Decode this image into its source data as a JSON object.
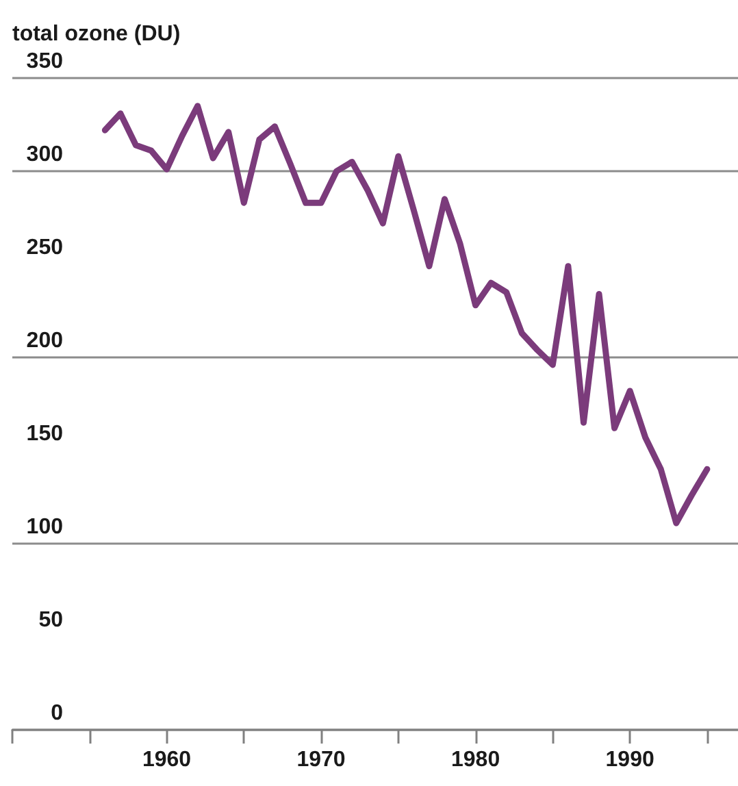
{
  "chart_data": {
    "type": "line",
    "ylabel": "total ozone (DU)",
    "x": [
      1956,
      1957,
      1958,
      1959,
      1960,
      1961,
      1962,
      1963,
      1964,
      1965,
      1966,
      1967,
      1968,
      1969,
      1970,
      1971,
      1972,
      1973,
      1974,
      1975,
      1976,
      1977,
      1978,
      1979,
      1980,
      1981,
      1982,
      1983,
      1984,
      1985,
      1986,
      1987,
      1988,
      1989,
      1990,
      1991,
      1992,
      1993,
      1994,
      1995
    ],
    "series": [
      {
        "color": "#7b3b7b",
        "values": [
          322,
          331,
          314,
          311,
          301,
          319,
          335,
          307,
          321,
          283,
          317,
          324,
          304,
          283,
          283,
          300,
          305,
          290,
          272,
          308,
          279,
          249,
          285,
          261,
          228,
          240,
          235,
          213,
          204,
          196,
          249,
          165,
          234,
          162,
          182,
          157,
          140,
          111,
          126,
          140
        ]
      }
    ],
    "xlim": [
      1950,
      1997
    ],
    "xticks": [
      {
        "value": 1950,
        "label": null
      },
      {
        "value": 1955,
        "label": null
      },
      1960,
      {
        "value": 1965,
        "label": null
      },
      1970,
      {
        "value": 1975,
        "label": null
      },
      1980,
      {
        "value": 1985,
        "label": null
      },
      1990,
      {
        "value": 1995,
        "label": null
      }
    ],
    "ylim": [
      0,
      350
    ],
    "yticks": [
      0,
      50,
      100,
      150,
      200,
      250,
      300,
      350
    ],
    "grid": "y",
    "marker": "none",
    "line_style": "solid"
  }
}
